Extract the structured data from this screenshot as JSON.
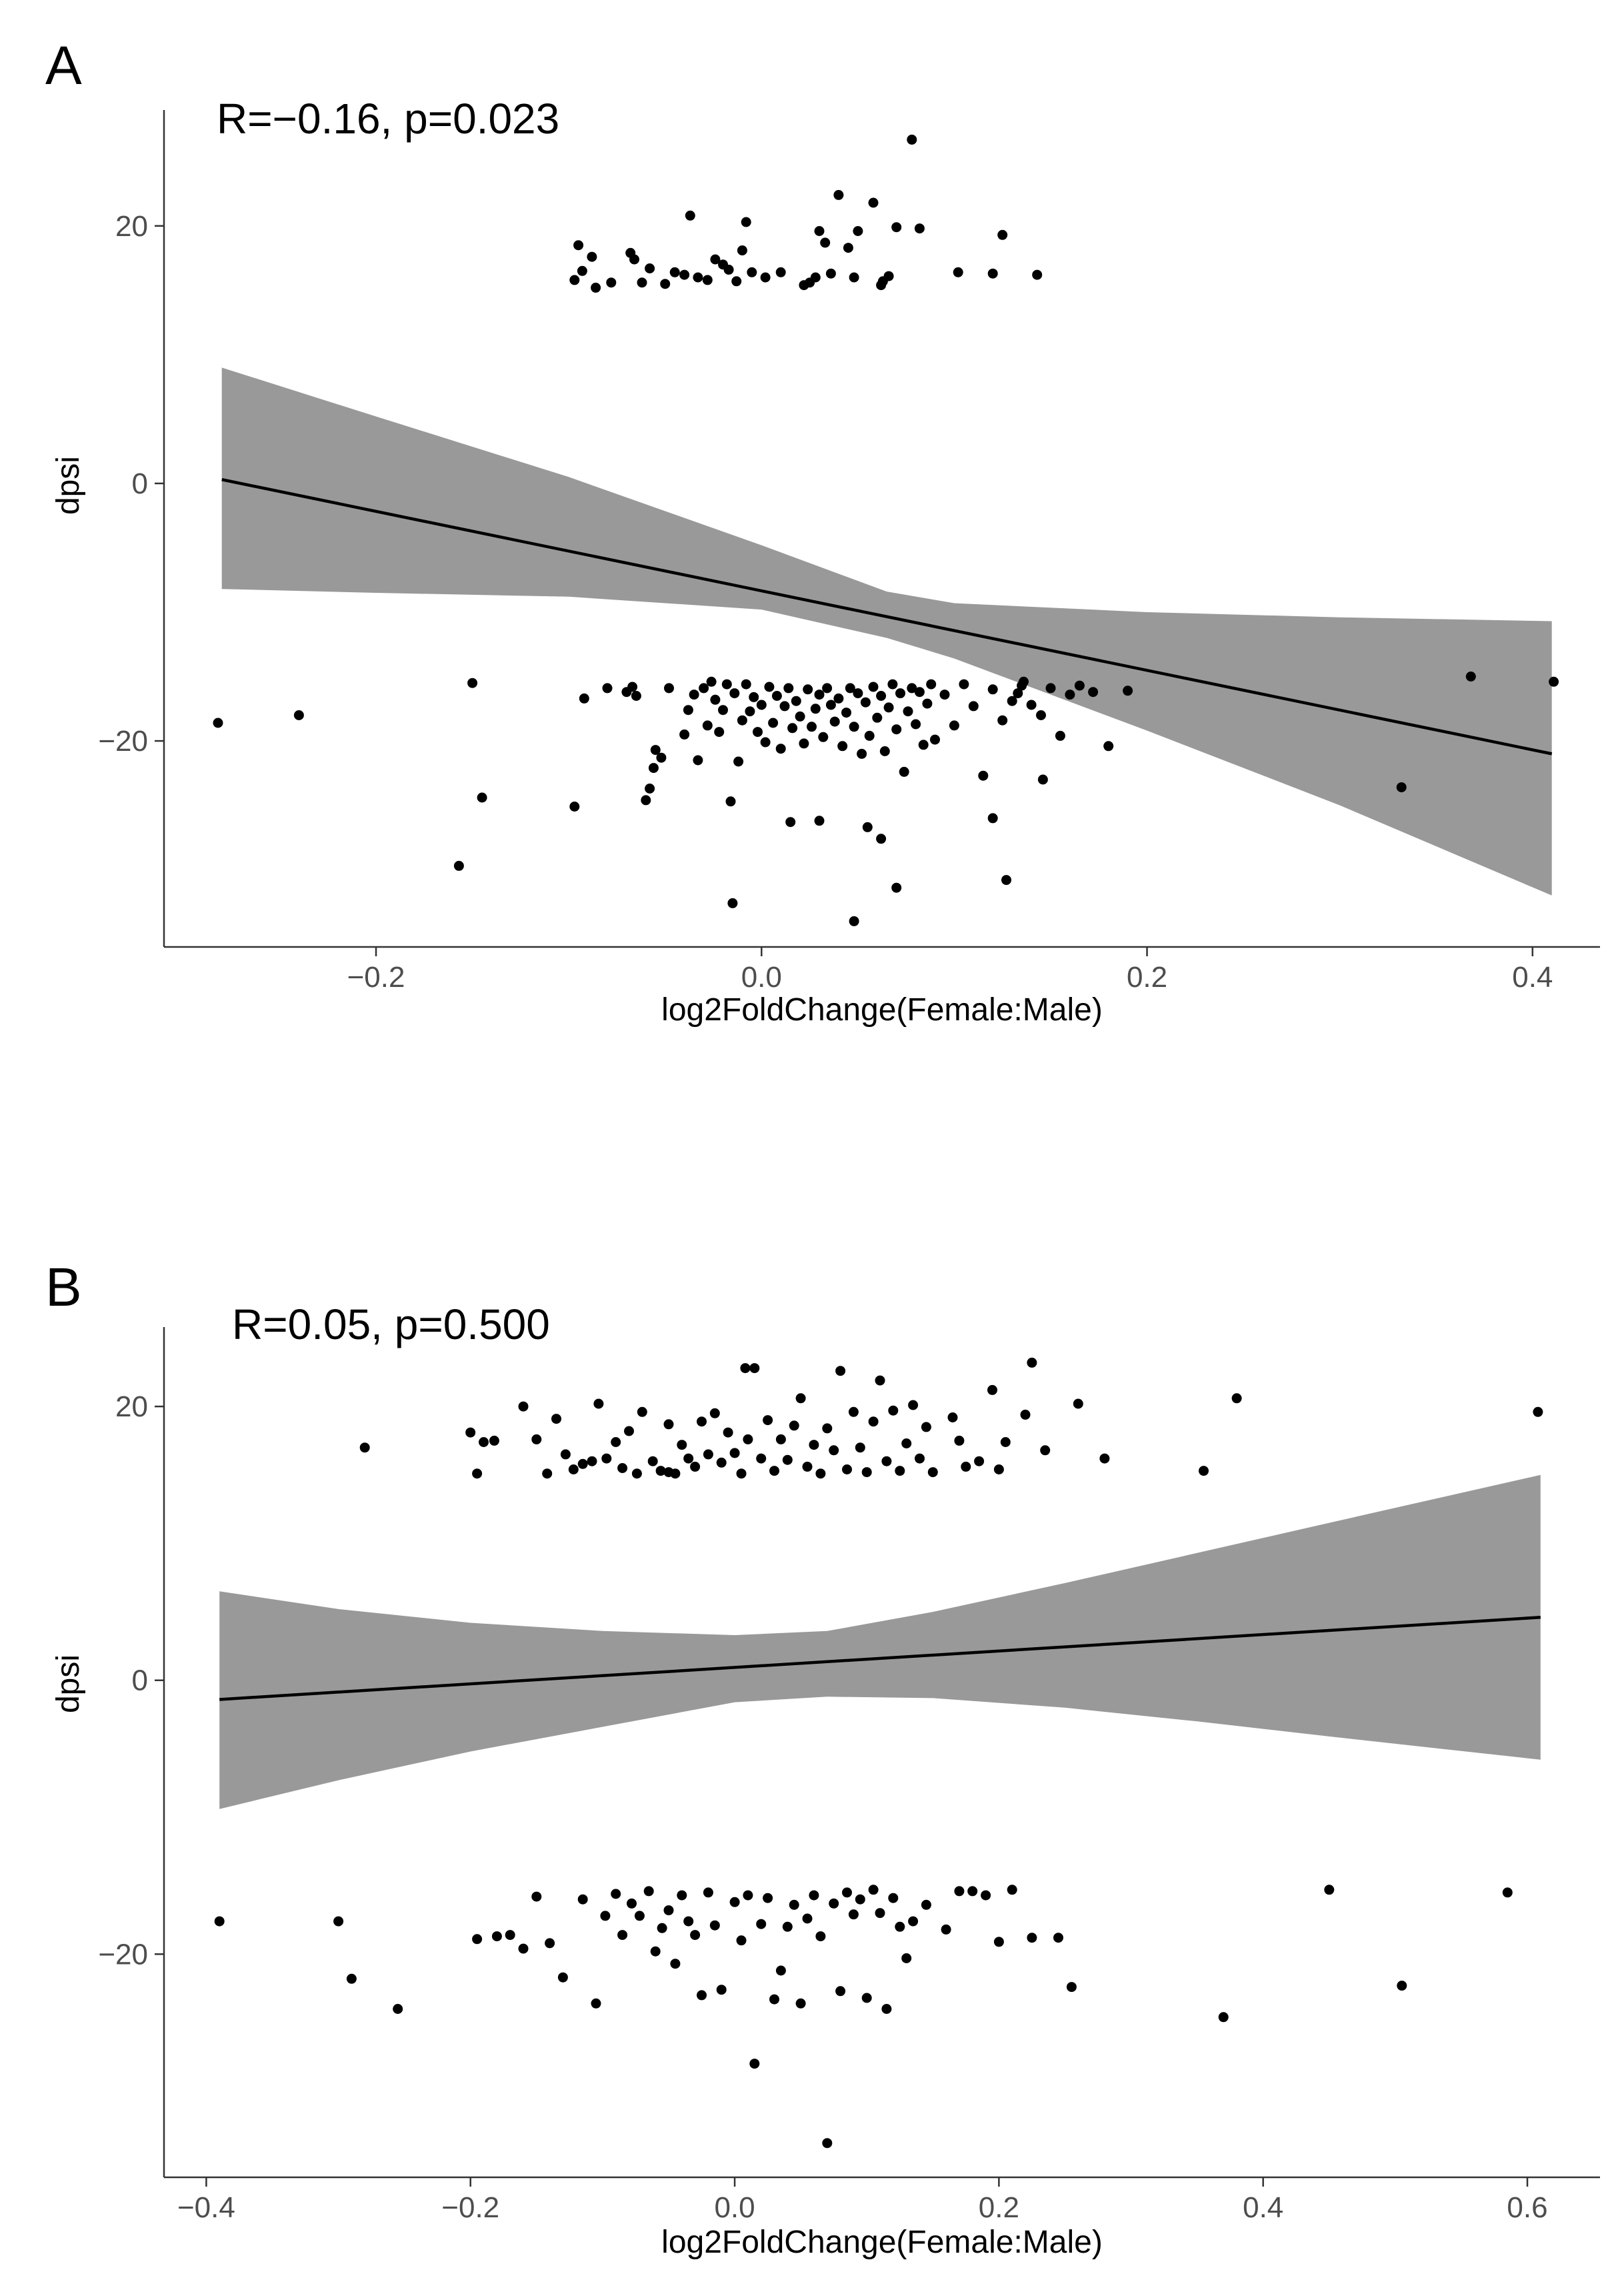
{
  "chart_data": [
    {
      "type": "scatter",
      "panel": "A",
      "annotation": "R=−0.16, p=0.023",
      "xlabel": "log2FoldChange(Female:Male)",
      "ylabel": "dpsi",
      "xlim": [
        -0.31,
        0.435
      ],
      "ylim": [
        -36,
        29
      ],
      "xticks": [
        -0.2,
        0.0,
        0.2,
        0.4
      ],
      "xtick_labels": [
        "−0.2",
        "0.0",
        "0.2",
        "0.4"
      ],
      "yticks": [
        -20,
        0,
        20
      ],
      "ytick_labels": [
        "−20",
        "0",
        "20"
      ],
      "fit": {
        "x0": -0.28,
        "y0": 0.3,
        "x1": 0.41,
        "y1": -21.0
      },
      "band": {
        "x": [
          -0.28,
          -0.2,
          -0.1,
          0.0,
          0.065,
          0.1,
          0.2,
          0.3,
          0.41
        ],
        "upper": [
          9.0,
          5.2,
          0.5,
          -4.8,
          -8.4,
          -9.3,
          -10.0,
          -10.4,
          -10.7
        ],
        "lower": [
          -8.2,
          -8.5,
          -8.8,
          -9.8,
          -12.0,
          -13.6,
          -19.2,
          -25.0,
          -32.0
        ]
      },
      "points": [
        [
          -0.097,
          15.8
        ],
        [
          -0.095,
          18.5
        ],
        [
          -0.093,
          16.5
        ],
        [
          -0.088,
          17.6
        ],
        [
          -0.086,
          15.2
        ],
        [
          -0.078,
          15.6
        ],
        [
          -0.068,
          17.9
        ],
        [
          -0.066,
          17.4
        ],
        [
          -0.062,
          15.6
        ],
        [
          -0.058,
          16.7
        ],
        [
          -0.05,
          15.5
        ],
        [
          -0.045,
          16.4
        ],
        [
          -0.04,
          16.2
        ],
        [
          -0.037,
          20.8
        ],
        [
          -0.033,
          16.0
        ],
        [
          -0.028,
          15.8
        ],
        [
          -0.024,
          17.4
        ],
        [
          -0.02,
          17.0
        ],
        [
          -0.017,
          16.6
        ],
        [
          -0.013,
          15.7
        ],
        [
          -0.01,
          18.1
        ],
        [
          -0.008,
          20.3
        ],
        [
          -0.005,
          16.4
        ],
        [
          0.002,
          16.0
        ],
        [
          0.01,
          16.4
        ],
        [
          0.022,
          15.4
        ],
        [
          0.025,
          15.6
        ],
        [
          0.028,
          16.0
        ],
        [
          0.03,
          19.6
        ],
        [
          0.033,
          18.7
        ],
        [
          0.036,
          16.3
        ],
        [
          0.04,
          22.4
        ],
        [
          0.045,
          18.3
        ],
        [
          0.048,
          16.0
        ],
        [
          0.05,
          19.6
        ],
        [
          0.058,
          21.8
        ],
        [
          0.062,
          15.4
        ],
        [
          0.063,
          15.7
        ],
        [
          0.066,
          16.1
        ],
        [
          0.07,
          19.9
        ],
        [
          0.078,
          26.7
        ],
        [
          0.082,
          19.8
        ],
        [
          0.102,
          16.4
        ],
        [
          0.12,
          16.3
        ],
        [
          0.125,
          19.3
        ],
        [
          0.143,
          16.2
        ],
        [
          -0.282,
          -18.6
        ],
        [
          -0.24,
          -18.0
        ],
        [
          -0.157,
          -29.7
        ],
        [
          -0.15,
          -15.5
        ],
        [
          -0.145,
          -24.4
        ],
        [
          -0.097,
          -25.1
        ],
        [
          -0.092,
          -16.7
        ],
        [
          -0.08,
          -15.9
        ],
        [
          -0.07,
          -16.2
        ],
        [
          -0.067,
          -15.8
        ],
        [
          -0.065,
          -16.5
        ],
        [
          -0.06,
          -24.6
        ],
        [
          -0.058,
          -23.7
        ],
        [
          -0.056,
          -22.1
        ],
        [
          -0.055,
          -20.7
        ],
        [
          -0.052,
          -21.3
        ],
        [
          -0.048,
          -15.9
        ],
        [
          -0.04,
          -19.5
        ],
        [
          -0.038,
          -17.6
        ],
        [
          -0.035,
          -16.4
        ],
        [
          -0.033,
          -21.5
        ],
        [
          -0.03,
          -15.9
        ],
        [
          -0.028,
          -18.8
        ],
        [
          -0.026,
          -15.4
        ],
        [
          -0.024,
          -16.8
        ],
        [
          -0.022,
          -19.3
        ],
        [
          -0.02,
          -17.6
        ],
        [
          -0.018,
          -15.6
        ],
        [
          -0.016,
          -24.7
        ],
        [
          -0.014,
          -16.3
        ],
        [
          -0.012,
          -21.6
        ],
        [
          -0.01,
          -18.4
        ],
        [
          -0.008,
          -15.6
        ],
        [
          -0.006,
          -17.7
        ],
        [
          -0.004,
          -16.6
        ],
        [
          -0.002,
          -19.3
        ],
        [
          0.0,
          -17.2
        ],
        [
          0.002,
          -20.1
        ],
        [
          0.004,
          -15.8
        ],
        [
          0.006,
          -18.6
        ],
        [
          0.008,
          -16.5
        ],
        [
          0.01,
          -20.6
        ],
        [
          0.012,
          -17.3
        ],
        [
          0.014,
          -15.9
        ],
        [
          0.016,
          -19.0
        ],
        [
          0.018,
          -16.9
        ],
        [
          0.02,
          -18.1
        ],
        [
          0.022,
          -20.2
        ],
        [
          0.024,
          -16.0
        ],
        [
          0.026,
          -18.9
        ],
        [
          0.028,
          -17.5
        ],
        [
          0.03,
          -16.4
        ],
        [
          0.032,
          -19.7
        ],
        [
          0.034,
          -15.9
        ],
        [
          0.036,
          -17.2
        ],
        [
          0.038,
          -18.5
        ],
        [
          0.04,
          -16.7
        ],
        [
          0.042,
          -20.4
        ],
        [
          0.044,
          -17.8
        ],
        [
          0.046,
          -15.9
        ],
        [
          0.048,
          -18.9
        ],
        [
          0.05,
          -16.3
        ],
        [
          0.052,
          -21.0
        ],
        [
          0.054,
          -17.0
        ],
        [
          0.056,
          -19.6
        ],
        [
          0.058,
          -15.8
        ],
        [
          0.06,
          -18.2
        ],
        [
          0.062,
          -16.5
        ],
        [
          0.064,
          -20.8
        ],
        [
          0.066,
          -17.4
        ],
        [
          0.068,
          -15.6
        ],
        [
          0.07,
          -19.1
        ],
        [
          0.072,
          -16.3
        ],
        [
          0.074,
          -22.4
        ],
        [
          0.076,
          -17.7
        ],
        [
          0.078,
          -15.9
        ],
        [
          0.08,
          -18.7
        ],
        [
          0.082,
          -16.2
        ],
        [
          0.084,
          -20.3
        ],
        [
          0.086,
          -17.1
        ],
        [
          0.088,
          -15.6
        ],
        [
          0.09,
          -19.9
        ],
        [
          0.095,
          -16.4
        ],
        [
          0.1,
          -18.8
        ],
        [
          0.105,
          -15.6
        ],
        [
          0.11,
          -17.3
        ],
        [
          0.115,
          -22.7
        ],
        [
          0.12,
          -16.0
        ],
        [
          0.125,
          -18.4
        ],
        [
          0.13,
          -16.9
        ],
        [
          0.135,
          -15.7
        ],
        [
          0.14,
          -17.2
        ],
        [
          0.145,
          -18.0
        ],
        [
          0.15,
          -15.9
        ],
        [
          0.155,
          -19.6
        ],
        [
          0.16,
          -16.4
        ],
        [
          -0.015,
          -32.6
        ],
        [
          0.015,
          -26.3
        ],
        [
          0.03,
          -26.2
        ],
        [
          0.048,
          -34.0
        ],
        [
          0.055,
          -26.7
        ],
        [
          0.062,
          -27.6
        ],
        [
          0.07,
          -31.4
        ],
        [
          0.12,
          -26.0
        ],
        [
          0.127,
          -30.8
        ],
        [
          0.133,
          -16.3
        ],
        [
          0.136,
          -15.4
        ],
        [
          0.146,
          -23.0
        ],
        [
          0.165,
          -15.7
        ],
        [
          0.172,
          -16.2
        ],
        [
          0.18,
          -20.4
        ],
        [
          0.19,
          -16.1
        ],
        [
          0.332,
          -23.6
        ],
        [
          0.368,
          -15.0
        ],
        [
          0.411,
          -15.4
        ]
      ]
    },
    {
      "type": "scatter",
      "panel": "B",
      "annotation": "R=0.05, p=0.500",
      "xlabel": "log2FoldChange(Female:Male)",
      "ylabel": "dpsi",
      "xlim": [
        -0.432,
        0.655
      ],
      "ylim": [
        -36.3,
        25.8
      ],
      "xticks": [
        -0.4,
        -0.2,
        0.0,
        0.2,
        0.4,
        0.6
      ],
      "xtick_labels": [
        "−0.4",
        "−0.2",
        "0.0",
        "0.2",
        "0.4",
        "0.6"
      ],
      "yticks": [
        -20,
        0,
        20
      ],
      "ytick_labels": [
        "−20",
        "0",
        "20"
      ],
      "fit": {
        "x0": -0.39,
        "y0": -1.4,
        "x1": 0.61,
        "y1": 4.6
      },
      "band": {
        "x": [
          -0.39,
          -0.3,
          -0.2,
          -0.1,
          0.0,
          0.07,
          0.15,
          0.25,
          0.35,
          0.45,
          0.61
        ],
        "upper": [
          6.5,
          5.2,
          4.2,
          3.6,
          3.3,
          3.6,
          5.0,
          7.1,
          9.3,
          11.5,
          15.0
        ],
        "lower": [
          -9.4,
          -7.3,
          -5.2,
          -3.4,
          -1.6,
          -1.2,
          -1.3,
          -2.0,
          -3.0,
          -4.1,
          -5.8
        ]
      },
      "points": [
        [
          -0.28,
          17.0
        ],
        [
          -0.2,
          18.1
        ],
        [
          -0.195,
          15.1
        ],
        [
          -0.19,
          17.4
        ],
        [
          -0.182,
          17.5
        ],
        [
          -0.16,
          20.0
        ],
        [
          -0.15,
          17.6
        ],
        [
          -0.142,
          15.1
        ],
        [
          -0.135,
          19.1
        ],
        [
          -0.128,
          16.5
        ],
        [
          -0.122,
          15.4
        ],
        [
          -0.115,
          15.8
        ],
        [
          -0.108,
          16.0
        ],
        [
          -0.103,
          20.2
        ],
        [
          -0.097,
          16.2
        ],
        [
          -0.09,
          17.4
        ],
        [
          -0.085,
          15.5
        ],
        [
          -0.08,
          18.2
        ],
        [
          -0.074,
          15.1
        ],
        [
          -0.07,
          19.6
        ],
        [
          -0.062,
          16.0
        ],
        [
          -0.056,
          15.3
        ],
        [
          -0.05,
          18.7
        ],
        [
          -0.045,
          15.1
        ],
        [
          -0.04,
          17.2
        ],
        [
          -0.035,
          16.2
        ],
        [
          -0.03,
          15.6
        ],
        [
          -0.025,
          18.9
        ],
        [
          -0.02,
          16.5
        ],
        [
          -0.015,
          19.5
        ],
        [
          -0.01,
          15.9
        ],
        [
          -0.005,
          18.1
        ],
        [
          0.0,
          16.6
        ],
        [
          0.005,
          15.1
        ],
        [
          0.01,
          17.6
        ],
        [
          0.015,
          22.8
        ],
        [
          0.02,
          16.2
        ],
        [
          0.025,
          19.0
        ],
        [
          0.03,
          15.3
        ],
        [
          0.035,
          17.6
        ],
        [
          0.04,
          16.1
        ],
        [
          0.045,
          18.6
        ],
        [
          0.05,
          20.6
        ],
        [
          0.055,
          15.6
        ],
        [
          0.06,
          17.2
        ],
        [
          0.065,
          15.1
        ],
        [
          0.07,
          18.4
        ],
        [
          0.075,
          16.8
        ],
        [
          0.08,
          22.6
        ],
        [
          0.085,
          15.4
        ],
        [
          0.09,
          19.6
        ],
        [
          0.095,
          17.0
        ],
        [
          0.1,
          15.2
        ],
        [
          0.105,
          18.9
        ],
        [
          0.11,
          21.9
        ],
        [
          0.115,
          16.0
        ],
        [
          0.12,
          19.7
        ],
        [
          0.125,
          15.3
        ],
        [
          0.13,
          17.3
        ],
        [
          0.135,
          20.1
        ],
        [
          0.14,
          16.2
        ],
        [
          0.145,
          18.5
        ],
        [
          0.15,
          15.2
        ],
        [
          0.165,
          19.2
        ],
        [
          0.17,
          17.5
        ],
        [
          0.175,
          15.6
        ],
        [
          0.185,
          16.0
        ],
        [
          0.195,
          21.2
        ],
        [
          0.2,
          15.4
        ],
        [
          0.205,
          17.4
        ],
        [
          0.22,
          19.4
        ],
        [
          0.225,
          23.2
        ],
        [
          0.235,
          16.8
        ],
        [
          0.26,
          20.2
        ],
        [
          0.28,
          16.2
        ],
        [
          0.355,
          15.3
        ],
        [
          0.38,
          20.6
        ],
        [
          0.608,
          19.6
        ],
        [
          0.008,
          22.8
        ],
        [
          -0.05,
          15.2
        ],
        [
          -0.39,
          -17.6
        ],
        [
          -0.3,
          -17.6
        ],
        [
          -0.29,
          -21.8
        ],
        [
          -0.255,
          -24.0
        ],
        [
          -0.195,
          -18.9
        ],
        [
          -0.18,
          -18.7
        ],
        [
          -0.16,
          -19.6
        ],
        [
          -0.15,
          -15.8
        ],
        [
          -0.14,
          -19.2
        ],
        [
          -0.13,
          -21.7
        ],
        [
          -0.115,
          -16.0
        ],
        [
          -0.105,
          -23.6
        ],
        [
          -0.098,
          -17.2
        ],
        [
          -0.09,
          -15.6
        ],
        [
          -0.085,
          -18.6
        ],
        [
          -0.078,
          -16.3
        ],
        [
          -0.072,
          -17.2
        ],
        [
          -0.065,
          -15.4
        ],
        [
          -0.06,
          -19.8
        ],
        [
          -0.055,
          -18.1
        ],
        [
          -0.05,
          -16.8
        ],
        [
          -0.045,
          -20.7
        ],
        [
          -0.04,
          -15.7
        ],
        [
          -0.035,
          -17.6
        ],
        [
          -0.03,
          -18.6
        ],
        [
          -0.025,
          -23.0
        ],
        [
          -0.02,
          -15.5
        ],
        [
          -0.015,
          -17.9
        ],
        [
          -0.01,
          -22.6
        ],
        [
          0.0,
          -16.2
        ],
        [
          0.005,
          -19.0
        ],
        [
          0.01,
          -15.7
        ],
        [
          0.015,
          -28.0
        ],
        [
          0.02,
          -17.8
        ],
        [
          0.025,
          -15.9
        ],
        [
          0.03,
          -23.3
        ],
        [
          0.035,
          -21.2
        ],
        [
          0.04,
          -18.0
        ],
        [
          0.045,
          -16.4
        ],
        [
          0.05,
          -23.6
        ],
        [
          0.055,
          -17.4
        ],
        [
          0.06,
          -15.7
        ],
        [
          0.065,
          -18.7
        ],
        [
          0.07,
          -33.8
        ],
        [
          0.075,
          -16.3
        ],
        [
          0.08,
          -22.7
        ],
        [
          0.085,
          -15.5
        ],
        [
          0.09,
          -17.1
        ],
        [
          0.095,
          -16.0
        ],
        [
          0.1,
          -23.2
        ],
        [
          0.105,
          -15.3
        ],
        [
          0.11,
          -17.0
        ],
        [
          0.115,
          -24.0
        ],
        [
          0.12,
          -15.9
        ],
        [
          0.125,
          -18.0
        ],
        [
          0.13,
          -20.3
        ],
        [
          0.135,
          -17.6
        ],
        [
          0.145,
          -16.4
        ],
        [
          0.16,
          -18.2
        ],
        [
          0.17,
          -15.4
        ],
        [
          0.18,
          -15.4
        ],
        [
          0.19,
          -15.7
        ],
        [
          0.2,
          -19.1
        ],
        [
          0.21,
          -15.3
        ],
        [
          0.225,
          -18.8
        ],
        [
          0.245,
          -18.8
        ],
        [
          0.255,
          -22.4
        ],
        [
          0.37,
          -24.6
        ],
        [
          0.45,
          -15.3
        ],
        [
          0.505,
          -22.3
        ],
        [
          0.585,
          -15.5
        ],
        [
          -0.17,
          -18.6
        ]
      ]
    }
  ]
}
